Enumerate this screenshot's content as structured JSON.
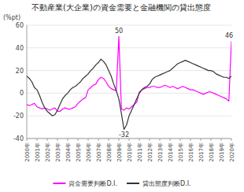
{
  "chart_data": {
    "type": "line",
    "title": "不動産業(大企業)の資金需要と金融機関の貸出態度",
    "y_label": "(%pt)",
    "categories": [
      "2000年",
      null,
      null,
      null,
      "2001年",
      null,
      null,
      null,
      "2002年",
      null,
      null,
      null,
      "2003年",
      null,
      null,
      null,
      "2004年",
      null,
      null,
      null,
      "2005年",
      null,
      null,
      null,
      "2006年",
      null,
      null,
      null,
      "2007年",
      null,
      null,
      null,
      "2008年",
      null,
      null,
      null,
      "2009年",
      null,
      null,
      null,
      "2010年",
      null,
      null,
      null,
      "2011年",
      null,
      null,
      null,
      "2012年",
      null,
      null,
      null,
      "2013年",
      null,
      null,
      null,
      "2014年",
      null,
      null,
      null,
      "2015年",
      null,
      null,
      null,
      "2016年",
      null,
      null,
      null,
      "2017年",
      null,
      null,
      null,
      "2018年",
      null,
      null,
      null,
      "2019年",
      null,
      null,
      null,
      "2020年"
    ],
    "series": [
      {
        "name": "資金需要判断D.I.",
        "color": "#FF00FF",
        "values": [
          -10,
          -11,
          -10,
          -9,
          -12,
          -13,
          -14,
          -13,
          -14,
          -15,
          -14,
          -13,
          -16,
          -16,
          -14,
          -13,
          -14,
          -14,
          -13,
          -12,
          -9,
          -7,
          -5,
          -4,
          3,
          5,
          7,
          8,
          12,
          14,
          13,
          10,
          6,
          4,
          3,
          2,
          50,
          -14,
          -15,
          -13,
          -14,
          -12,
          -10,
          -8,
          1,
          3,
          4,
          5,
          5,
          6,
          6,
          5,
          5,
          6,
          7,
          6,
          5,
          6,
          5,
          4,
          5,
          6,
          5,
          4,
          3,
          3,
          2,
          1,
          0,
          -1,
          0,
          1,
          1,
          0,
          -1,
          -2,
          -3,
          -4,
          -5,
          -7,
          46
        ]
      },
      {
        "name": "貸出態度判断D.I.",
        "color": "#333333",
        "values": [
          15,
          13,
          10,
          5,
          3,
          -2,
          -8,
          -13,
          -16,
          -18,
          -20,
          -19,
          -15,
          -10,
          -5,
          -2,
          0,
          3,
          5,
          6,
          8,
          10,
          13,
          15,
          17,
          20,
          22,
          25,
          27,
          30,
          28,
          25,
          20,
          15,
          8,
          2,
          -5,
          -18,
          -32,
          -28,
          -20,
          -15,
          -10,
          -5,
          0,
          3,
          5,
          6,
          8,
          12,
          14,
          15,
          16,
          17,
          18,
          19,
          20,
          22,
          24,
          26,
          27,
          28,
          29,
          28,
          27,
          26,
          25,
          24,
          23,
          22,
          21,
          20,
          20,
          19,
          17,
          16,
          15,
          14,
          14,
          13,
          15
        ]
      }
    ],
    "annotations": [
      "50",
      "-32",
      "46"
    ],
    "ylim": [
      -40,
      60
    ],
    "yticks": [
      -40,
      -20,
      0,
      20,
      40,
      60
    ],
    "grid": true,
    "legend": "bottom"
  }
}
